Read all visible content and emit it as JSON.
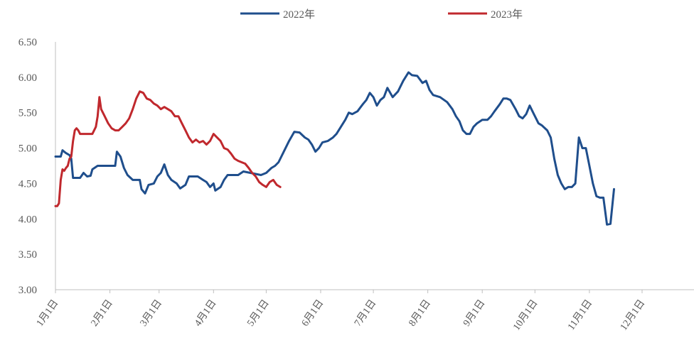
{
  "chart_data": {
    "type": "line",
    "title": "",
    "xlabel": "",
    "ylabel": "",
    "ylim": [
      3.0,
      6.5
    ],
    "y_ticks": [
      "3.00",
      "3.50",
      "4.00",
      "4.50",
      "5.00",
      "5.50",
      "6.00",
      "6.50"
    ],
    "x_domain": [
      1,
      366
    ],
    "x_ticks": [
      {
        "label": "1月1日",
        "day": 1
      },
      {
        "label": "2月1日",
        "day": 32
      },
      {
        "label": "3月1日",
        "day": 60
      },
      {
        "label": "4月1日",
        "day": 91
      },
      {
        "label": "5月1日",
        "day": 121
      },
      {
        "label": "6月1日",
        "day": 152
      },
      {
        "label": "7月1日",
        "day": 182
      },
      {
        "label": "8月1日",
        "day": 213
      },
      {
        "label": "9月1日",
        "day": 244
      },
      {
        "label": "10月1日",
        "day": 274
      },
      {
        "label": "11月1日",
        "day": 305
      },
      {
        "label": "12月1日",
        "day": 335
      }
    ],
    "grid": false,
    "legend_position": "top-center",
    "series": [
      {
        "name": "2022年",
        "color": "#1f4e8c",
        "points": [
          [
            1,
            4.88
          ],
          [
            4,
            4.88
          ],
          [
            5,
            4.97
          ],
          [
            7,
            4.93
          ],
          [
            9,
            4.9
          ],
          [
            10,
            4.85
          ],
          [
            11,
            4.58
          ],
          [
            15,
            4.58
          ],
          [
            17,
            4.65
          ],
          [
            19,
            4.6
          ],
          [
            21,
            4.61
          ],
          [
            22,
            4.7
          ],
          [
            25,
            4.75
          ],
          [
            35,
            4.75
          ],
          [
            36,
            4.95
          ],
          [
            38,
            4.88
          ],
          [
            40,
            4.72
          ],
          [
            42,
            4.62
          ],
          [
            45,
            4.55
          ],
          [
            49,
            4.55
          ],
          [
            50,
            4.42
          ],
          [
            52,
            4.36
          ],
          [
            54,
            4.48
          ],
          [
            57,
            4.5
          ],
          [
            59,
            4.6
          ],
          [
            61,
            4.65
          ],
          [
            63,
            4.77
          ],
          [
            65,
            4.62
          ],
          [
            67,
            4.55
          ],
          [
            70,
            4.5
          ],
          [
            72,
            4.43
          ],
          [
            75,
            4.48
          ],
          [
            77,
            4.6
          ],
          [
            82,
            4.6
          ],
          [
            85,
            4.55
          ],
          [
            87,
            4.52
          ],
          [
            89,
            4.45
          ],
          [
            91,
            4.5
          ],
          [
            92,
            4.4
          ],
          [
            95,
            4.45
          ],
          [
            97,
            4.55
          ],
          [
            99,
            4.62
          ],
          [
            105,
            4.62
          ],
          [
            108,
            4.67
          ],
          [
            112,
            4.65
          ],
          [
            118,
            4.62
          ],
          [
            121,
            4.65
          ],
          [
            124,
            4.72
          ],
          [
            126,
            4.75
          ],
          [
            128,
            4.8
          ],
          [
            129,
            4.85
          ],
          [
            131,
            4.95
          ],
          [
            134,
            5.1
          ],
          [
            137,
            5.23
          ],
          [
            140,
            5.22
          ],
          [
            143,
            5.15
          ],
          [
            145,
            5.12
          ],
          [
            147,
            5.05
          ],
          [
            149,
            4.95
          ],
          [
            151,
            5.0
          ],
          [
            153,
            5.08
          ],
          [
            156,
            5.1
          ],
          [
            159,
            5.15
          ],
          [
            161,
            5.2
          ],
          [
            164,
            5.32
          ],
          [
            166,
            5.4
          ],
          [
            168,
            5.5
          ],
          [
            170,
            5.48
          ],
          [
            173,
            5.52
          ],
          [
            176,
            5.62
          ],
          [
            178,
            5.68
          ],
          [
            180,
            5.78
          ],
          [
            182,
            5.72
          ],
          [
            184,
            5.6
          ],
          [
            186,
            5.68
          ],
          [
            188,
            5.72
          ],
          [
            190,
            5.85
          ],
          [
            193,
            5.72
          ],
          [
            196,
            5.8
          ],
          [
            199,
            5.95
          ],
          [
            202,
            6.07
          ],
          [
            204,
            6.03
          ],
          [
            207,
            6.02
          ],
          [
            210,
            5.92
          ],
          [
            212,
            5.95
          ],
          [
            214,
            5.82
          ],
          [
            216,
            5.75
          ],
          [
            220,
            5.72
          ],
          [
            224,
            5.65
          ],
          [
            227,
            5.55
          ],
          [
            229,
            5.45
          ],
          [
            231,
            5.38
          ],
          [
            233,
            5.25
          ],
          [
            235,
            5.2
          ],
          [
            237,
            5.2
          ],
          [
            239,
            5.3
          ],
          [
            241,
            5.35
          ],
          [
            244,
            5.4
          ],
          [
            247,
            5.4
          ],
          [
            249,
            5.45
          ],
          [
            251,
            5.52
          ],
          [
            254,
            5.62
          ],
          [
            256,
            5.7
          ],
          [
            258,
            5.7
          ],
          [
            260,
            5.68
          ],
          [
            263,
            5.55
          ],
          [
            265,
            5.45
          ],
          [
            267,
            5.42
          ],
          [
            269,
            5.48
          ],
          [
            271,
            5.6
          ],
          [
            273,
            5.5
          ],
          [
            276,
            5.35
          ],
          [
            278,
            5.32
          ],
          [
            281,
            5.25
          ],
          [
            283,
            5.15
          ],
          [
            285,
            4.85
          ],
          [
            287,
            4.62
          ],
          [
            289,
            4.5
          ],
          [
            291,
            4.42
          ],
          [
            293,
            4.45
          ],
          [
            295,
            4.45
          ],
          [
            297,
            4.5
          ],
          [
            299,
            5.15
          ],
          [
            301,
            5.0
          ],
          [
            303,
            5.0
          ],
          [
            305,
            4.75
          ],
          [
            307,
            4.5
          ],
          [
            309,
            4.32
          ],
          [
            311,
            4.3
          ],
          [
            313,
            4.3
          ],
          [
            315,
            3.92
          ],
          [
            317,
            3.93
          ],
          [
            319,
            4.42
          ]
        ]
      },
      {
        "name": "2023年",
        "color": "#c0282d",
        "points": [
          [
            1,
            4.18
          ],
          [
            2,
            4.18
          ],
          [
            3,
            4.22
          ],
          [
            4,
            4.55
          ],
          [
            5,
            4.7
          ],
          [
            6,
            4.68
          ],
          [
            7,
            4.72
          ],
          [
            8,
            4.75
          ],
          [
            9,
            4.85
          ],
          [
            10,
            4.88
          ],
          [
            11,
            5.1
          ],
          [
            12,
            5.25
          ],
          [
            13,
            5.28
          ],
          [
            14,
            5.25
          ],
          [
            15,
            5.2
          ],
          [
            18,
            5.2
          ],
          [
            22,
            5.2
          ],
          [
            24,
            5.3
          ],
          [
            25,
            5.45
          ],
          [
            26,
            5.72
          ],
          [
            27,
            5.55
          ],
          [
            29,
            5.45
          ],
          [
            31,
            5.35
          ],
          [
            33,
            5.28
          ],
          [
            35,
            5.25
          ],
          [
            37,
            5.25
          ],
          [
            39,
            5.3
          ],
          [
            41,
            5.35
          ],
          [
            43,
            5.42
          ],
          [
            45,
            5.55
          ],
          [
            47,
            5.7
          ],
          [
            49,
            5.8
          ],
          [
            51,
            5.78
          ],
          [
            53,
            5.7
          ],
          [
            55,
            5.68
          ],
          [
            57,
            5.63
          ],
          [
            59,
            5.6
          ],
          [
            61,
            5.55
          ],
          [
            63,
            5.58
          ],
          [
            65,
            5.55
          ],
          [
            67,
            5.52
          ],
          [
            69,
            5.45
          ],
          [
            71,
            5.45
          ],
          [
            73,
            5.35
          ],
          [
            75,
            5.25
          ],
          [
            77,
            5.15
          ],
          [
            79,
            5.08
          ],
          [
            81,
            5.12
          ],
          [
            83,
            5.08
          ],
          [
            85,
            5.1
          ],
          [
            87,
            5.05
          ],
          [
            89,
            5.1
          ],
          [
            91,
            5.2
          ],
          [
            93,
            5.15
          ],
          [
            95,
            5.1
          ],
          [
            97,
            5.0
          ],
          [
            99,
            4.98
          ],
          [
            101,
            4.92
          ],
          [
            103,
            4.85
          ],
          [
            105,
            4.82
          ],
          [
            107,
            4.8
          ],
          [
            109,
            4.78
          ],
          [
            111,
            4.72
          ],
          [
            113,
            4.65
          ],
          [
            115,
            4.6
          ],
          [
            117,
            4.52
          ],
          [
            119,
            4.48
          ],
          [
            121,
            4.45
          ],
          [
            123,
            4.52
          ],
          [
            125,
            4.55
          ],
          [
            127,
            4.48
          ],
          [
            129,
            4.45
          ]
        ]
      }
    ]
  }
}
